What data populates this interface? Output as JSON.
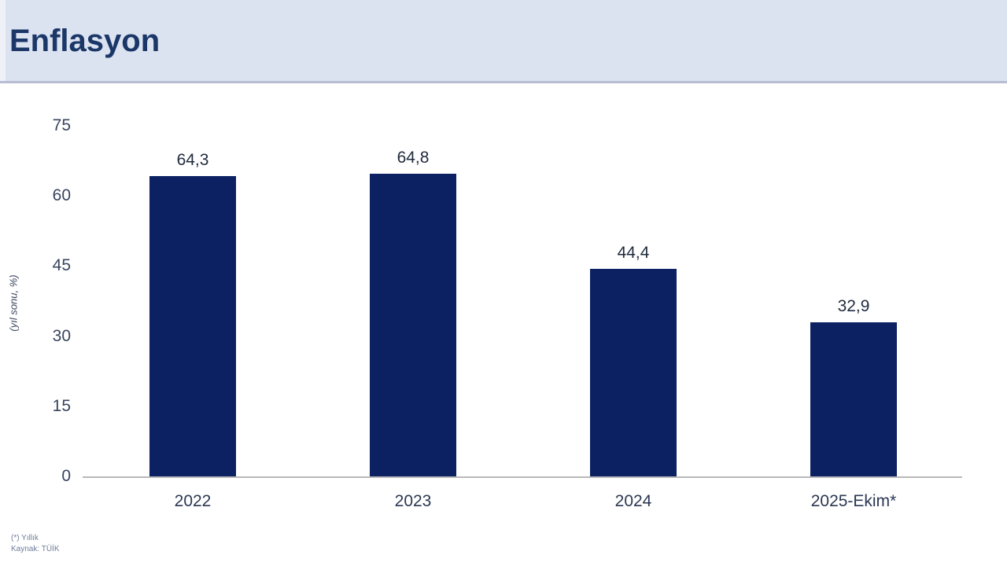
{
  "header": {
    "title": "Enflasyon"
  },
  "chart_data": {
    "type": "bar",
    "title": "Enflasyon",
    "ylabel": "(yıl sonu, %)",
    "xlabel": "",
    "categories": [
      "2022",
      "2023",
      "2024",
      "2025-Ekim*"
    ],
    "values": [
      64.3,
      64.8,
      44.4,
      32.9
    ],
    "value_labels": [
      "64,3",
      "64,8",
      "44,4",
      "32,9"
    ],
    "ylim": [
      0,
      75
    ],
    "yticks": [
      0,
      15,
      30,
      45,
      60,
      75
    ],
    "grid": false,
    "legend": "none",
    "bar_color": "#0b2161"
  },
  "footnotes": {
    "line1": "(*) Yıllık",
    "line2": "Kaynak: TÜİK"
  },
  "colors": {
    "banner_bg": "#dbe2f0",
    "banner_border": "#b7bed2",
    "title_text": "#1b3768",
    "bar": "#0b2161",
    "axis_line": "#b8b8b8",
    "tick_text": "#38455e",
    "footnote_text": "#6d7b99"
  }
}
